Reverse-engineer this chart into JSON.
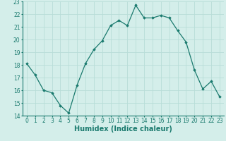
{
  "x": [
    0,
    1,
    2,
    3,
    4,
    5,
    6,
    7,
    8,
    9,
    10,
    11,
    12,
    13,
    14,
    15,
    16,
    17,
    18,
    19,
    20,
    21,
    22,
    23
  ],
  "y": [
    18.1,
    17.2,
    16.0,
    15.8,
    14.8,
    14.2,
    16.4,
    18.1,
    19.2,
    19.9,
    21.1,
    21.5,
    21.1,
    22.7,
    21.7,
    21.7,
    21.9,
    21.7,
    20.7,
    19.8,
    17.6,
    16.1,
    16.7,
    15.5
  ],
  "line_color": "#1a7a6e",
  "marker": "D",
  "marker_size": 1.8,
  "line_width": 0.9,
  "xlabel": "Humidex (Indice chaleur)",
  "xlabel_fontsize": 7,
  "xlabel_weight": "bold",
  "ylim": [
    14,
    23
  ],
  "xlim": [
    -0.5,
    23.5
  ],
  "yticks": [
    14,
    15,
    16,
    17,
    18,
    19,
    20,
    21,
    22,
    23
  ],
  "xticks": [
    0,
    1,
    2,
    3,
    4,
    5,
    6,
    7,
    8,
    9,
    10,
    11,
    12,
    13,
    14,
    15,
    16,
    17,
    18,
    19,
    20,
    21,
    22,
    23
  ],
  "grid_color": "#b8ddd8",
  "bg_color": "#d4eeea",
  "tick_fontsize": 5.5,
  "spine_color": "#1a7a6e"
}
